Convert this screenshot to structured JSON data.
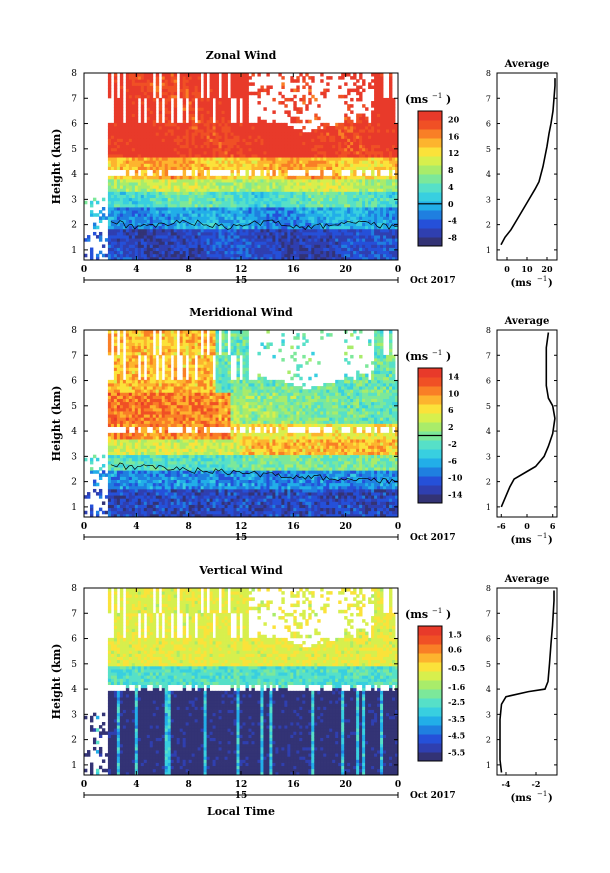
{
  "chart_data": [
    {
      "type": "heatmap",
      "title": "Zonal Wind",
      "ylabel": "Height (km)",
      "unit_label": "(ms",
      "unit_exp": "−1",
      "x_ticks": [
        "0",
        "4",
        "8",
        "12",
        "16",
        "20",
        "0"
      ],
      "y_ticks": [
        "1",
        "2",
        "3",
        "4",
        "5",
        "6",
        "7",
        "8"
      ],
      "xlim": [
        0,
        24
      ],
      "ylim": [
        0.6,
        8
      ],
      "date_day": "15",
      "date_month": "Oct 2017",
      "colorbar": {
        "colors": [
          "#333375",
          "#2f3fb0",
          "#2550d9",
          "#1f7fe0",
          "#22aee8",
          "#38cfe0",
          "#56e0c8",
          "#7ce89a",
          "#a9ec6a",
          "#d7ef4d",
          "#fbe23a",
          "#fdb42e",
          "#f97f26",
          "#f05025",
          "#e83a2a"
        ],
        "ticks": [
          "20",
          "16",
          "12",
          "8",
          "4",
          "0",
          "-4",
          "-8"
        ],
        "range": [
          -10,
          22
        ],
        "zero_line": 0
      },
      "field": {
        "kind": "zonal",
        "missing_left_hours": 1.6,
        "gap_height": 4.0,
        "high_region_top": 8
      },
      "average": {
        "title": "Average",
        "xlabel": "(ms",
        "xlabel_exp": "−1",
        "x_ticks": [
          "0",
          "10",
          "20"
        ],
        "y_ticks": [
          "1",
          "2",
          "3",
          "4",
          "5",
          "6",
          "7",
          "8"
        ],
        "xlim": [
          -5,
          25
        ],
        "profile": [
          [
            -3,
            1.2
          ],
          [
            -1,
            1.5
          ],
          [
            2,
            1.8
          ],
          [
            5,
            2.2
          ],
          [
            8,
            2.6
          ],
          [
            11,
            3.0
          ],
          [
            14,
            3.4
          ],
          [
            16,
            3.7
          ],
          [
            17,
            4.0
          ],
          [
            18,
            4.3
          ],
          [
            19,
            4.7
          ],
          [
            20,
            5.1
          ],
          [
            21,
            5.6
          ],
          [
            22,
            6.0
          ],
          [
            23,
            6.5
          ],
          [
            23.5,
            7.0
          ],
          [
            24,
            7.5
          ],
          [
            24,
            7.8
          ]
        ]
      }
    },
    {
      "type": "heatmap",
      "title": "Meridional Wind",
      "ylabel": "Height (km)",
      "unit_label": "(ms",
      "unit_exp": "−1",
      "x_ticks": [
        "0",
        "4",
        "8",
        "12",
        "16",
        "20",
        "0"
      ],
      "y_ticks": [
        "1",
        "2",
        "3",
        "4",
        "5",
        "6",
        "7",
        "8"
      ],
      "xlim": [
        0,
        24
      ],
      "ylim": [
        0.6,
        8
      ],
      "date_day": "15",
      "date_month": "Oct 2017",
      "colorbar": {
        "colors": [
          "#333375",
          "#2f3fb0",
          "#2550d9",
          "#1f7fe0",
          "#22aee8",
          "#38cfe0",
          "#56e0c8",
          "#7ce89a",
          "#a9ec6a",
          "#d7ef4d",
          "#fbe23a",
          "#fdb42e",
          "#f97f26",
          "#f05025",
          "#e83a2a"
        ],
        "ticks": [
          "14",
          "10",
          "6",
          "2",
          "-2",
          "-6",
          "-10",
          "-14"
        ],
        "range": [
          -16,
          16
        ],
        "zero_line": 0
      },
      "field": {
        "kind": "meridional",
        "missing_left_hours": 1.6,
        "gap_height": 4.0,
        "high_region_top": 8
      },
      "average": {
        "title": "Average",
        "xlabel": "(ms",
        "xlabel_exp": "−1",
        "x_ticks": [
          "-6",
          "0",
          "6"
        ],
        "y_ticks": [
          "1",
          "2",
          "3",
          "4",
          "5",
          "6",
          "7",
          "8"
        ],
        "xlim": [
          -7,
          7
        ],
        "profile": [
          [
            -6,
            1.0
          ],
          [
            -5,
            1.4
          ],
          [
            -4,
            1.8
          ],
          [
            -3,
            2.1
          ],
          [
            0,
            2.4
          ],
          [
            2,
            2.6
          ],
          [
            4,
            3.0
          ],
          [
            5,
            3.4
          ],
          [
            6,
            3.9
          ],
          [
            6.5,
            4.5
          ],
          [
            6,
            5.0
          ],
          [
            5,
            5.3
          ],
          [
            4.5,
            5.8
          ],
          [
            4.5,
            6.5
          ],
          [
            4.5,
            7.3
          ],
          [
            5,
            7.9
          ]
        ]
      }
    },
    {
      "type": "heatmap",
      "title": "Vertical Wind",
      "ylabel": "Height (km)",
      "unit_label": "(ms",
      "unit_exp": "−1",
      "x_ticks": [
        "0",
        "4",
        "8",
        "12",
        "16",
        "20",
        "0"
      ],
      "y_ticks": [
        "1",
        "2",
        "3",
        "4",
        "5",
        "6",
        "7",
        "8"
      ],
      "xlim": [
        0,
        24
      ],
      "ylim": [
        0.6,
        8
      ],
      "date_day": "15",
      "date_month": "Oct 2017",
      "xlabel": "Local Time",
      "colorbar": {
        "colors": [
          "#333375",
          "#2f3fb0",
          "#2550d9",
          "#1f7fe0",
          "#22aee8",
          "#38cfe0",
          "#56e0c8",
          "#7ce89a",
          "#a9ec6a",
          "#d7ef4d",
          "#fbe23a",
          "#fdb42e",
          "#f97f26",
          "#f05025",
          "#e83a2a"
        ],
        "ticks": [
          "1.5",
          "0.6",
          "-0.5",
          "-1.6",
          "-2.5",
          "-3.5",
          "-4.5",
          "-5.5"
        ],
        "range": [
          -6.0,
          2.0
        ],
        "zero_line": null
      },
      "field": {
        "kind": "vertical",
        "missing_left_hours": 1.6,
        "gap_height": 4.0,
        "high_region_top": 8
      },
      "average": {
        "title": "Average",
        "xlabel": "(ms",
        "xlabel_exp": "−1",
        "x_ticks": [
          "-4",
          "-2"
        ],
        "y_ticks": [
          "1",
          "2",
          "3",
          "4",
          "5",
          "6",
          "7",
          "8"
        ],
        "xlim": [
          -4.6,
          -0.6
        ],
        "profile": [
          [
            -4.3,
            0.7
          ],
          [
            -4.4,
            1.2
          ],
          [
            -4.4,
            2.0
          ],
          [
            -4.4,
            2.8
          ],
          [
            -4.3,
            3.4
          ],
          [
            -4.0,
            3.7
          ],
          [
            -2.5,
            3.9
          ],
          [
            -1.4,
            4.0
          ],
          [
            -1.2,
            4.3
          ],
          [
            -1.1,
            5.0
          ],
          [
            -1.0,
            5.8
          ],
          [
            -0.9,
            6.5
          ],
          [
            -0.8,
            7.5
          ],
          [
            -0.8,
            7.9
          ]
        ]
      }
    }
  ]
}
